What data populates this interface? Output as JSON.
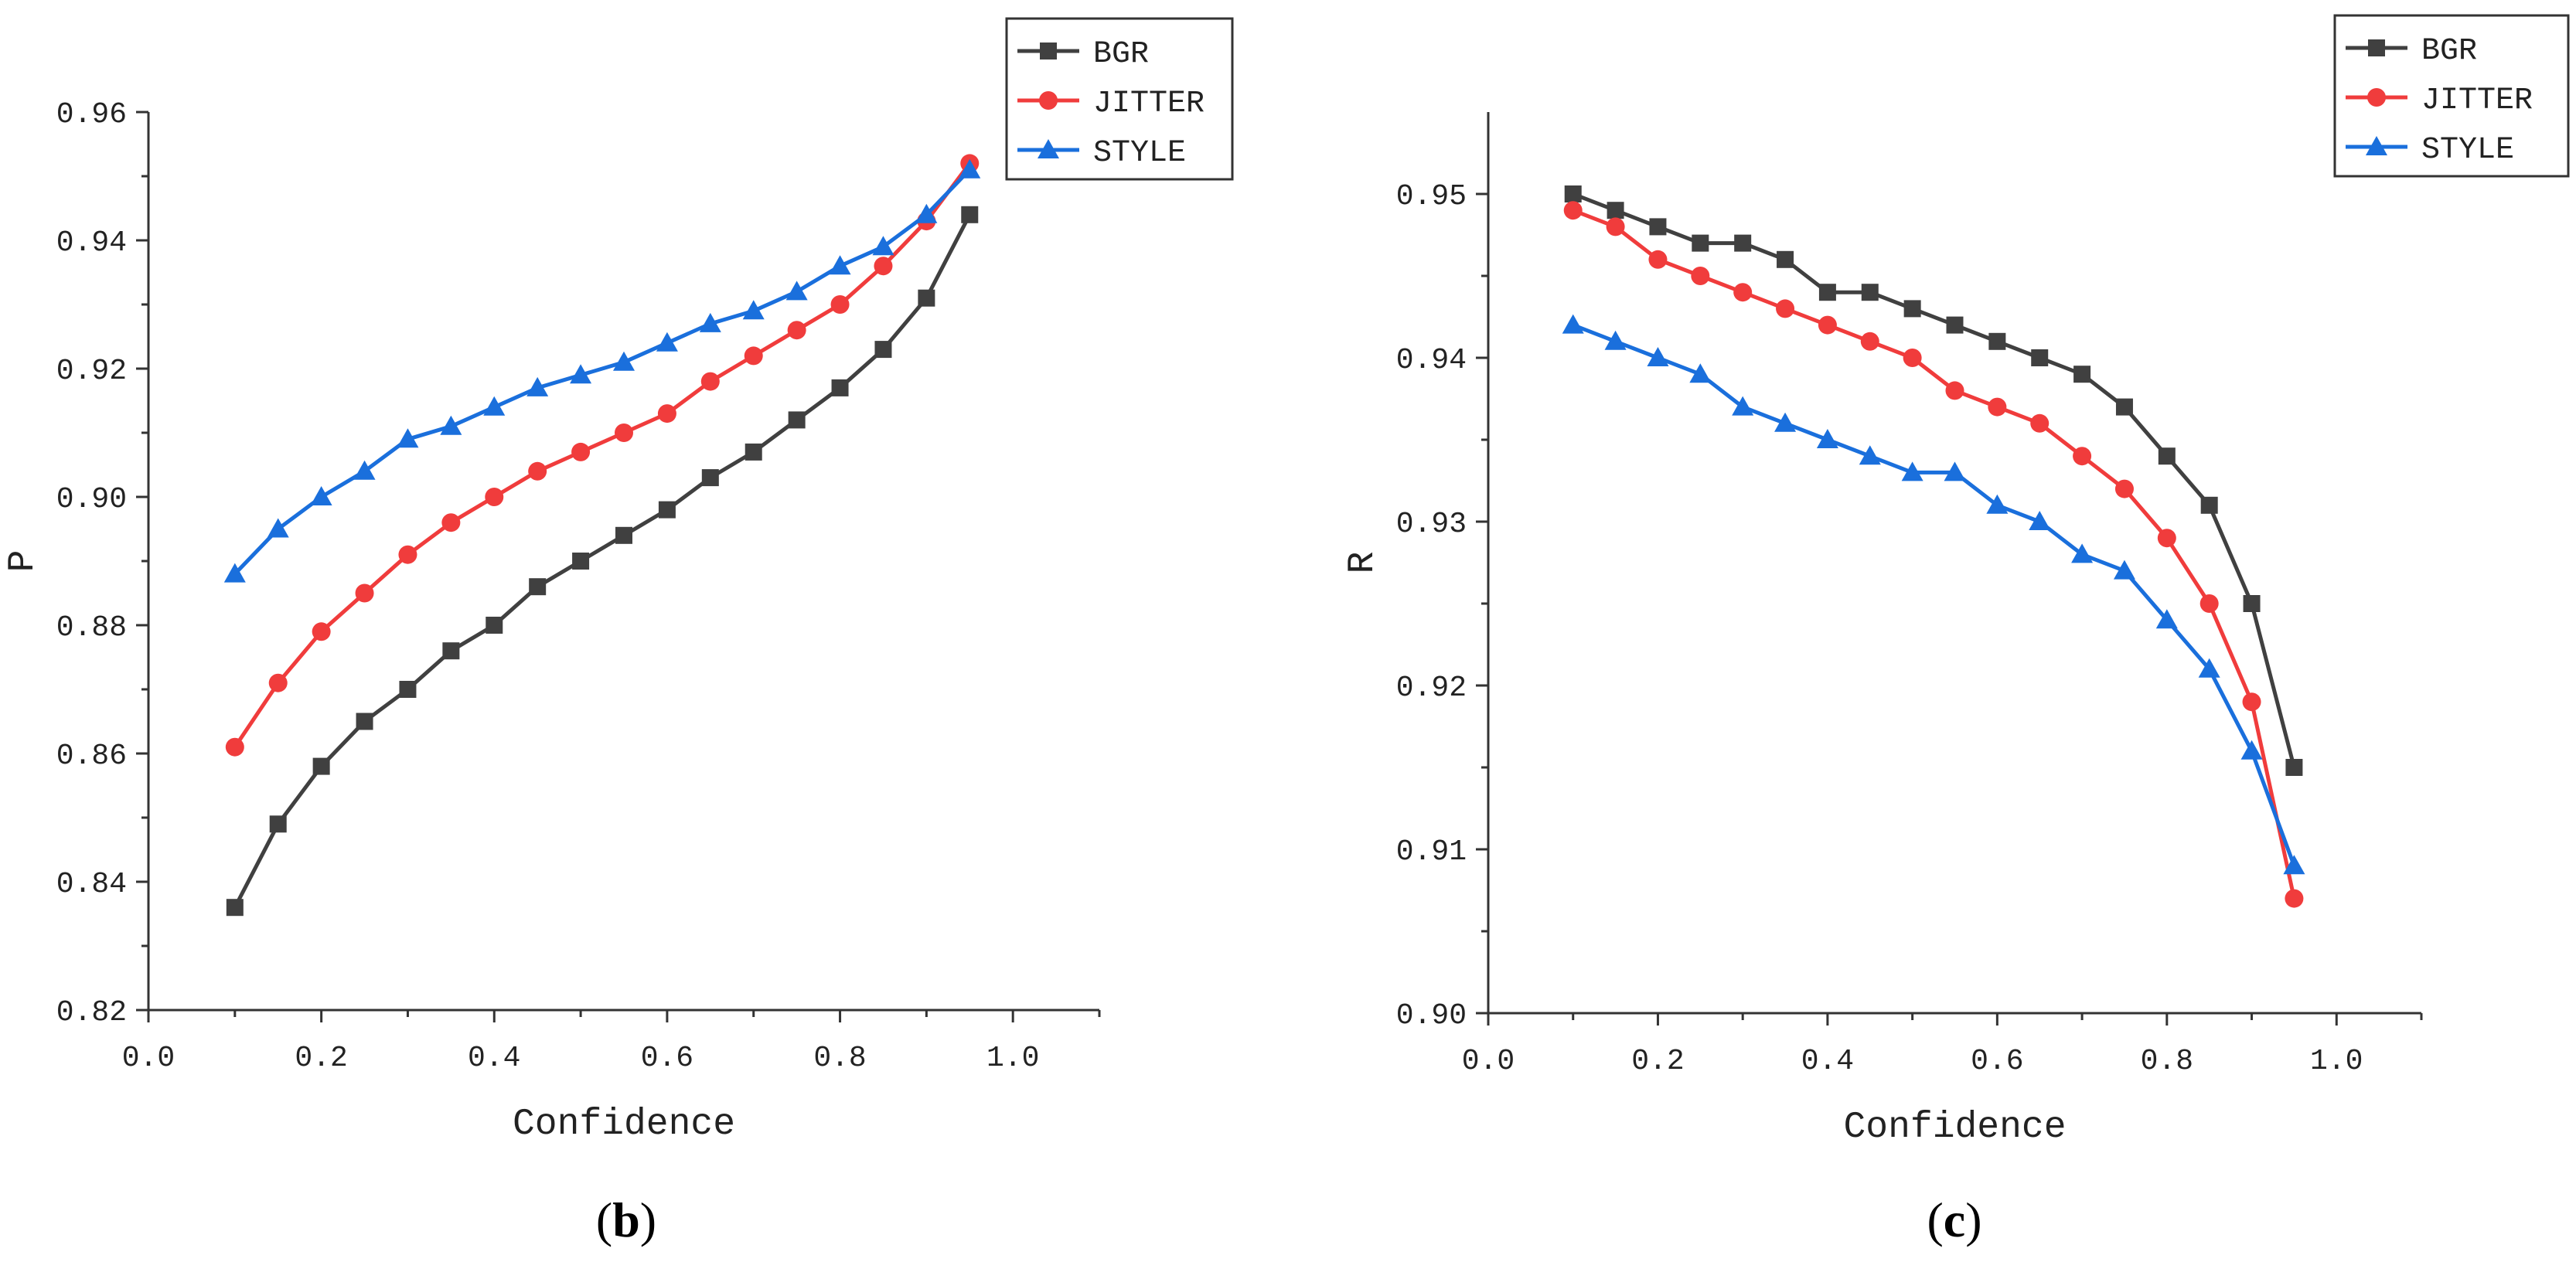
{
  "figure": {
    "panels": [
      "b",
      "c"
    ]
  },
  "chart_data": [
    {
      "id": "b",
      "type": "line",
      "caption_letter": "b",
      "title": "",
      "xlabel": "Confidence",
      "ylabel": "P",
      "xlim": [
        0.0,
        1.1
      ],
      "ylim": [
        0.82,
        0.96
      ],
      "xticks": [
        0.0,
        0.2,
        0.4,
        0.6,
        0.8,
        1.0
      ],
      "xtick_labels": [
        "0.0",
        "0.2",
        "0.4",
        "0.6",
        "0.8",
        "1.0"
      ],
      "yticks": [
        0.82,
        0.84,
        0.86,
        0.88,
        0.9,
        0.92,
        0.94,
        0.96
      ],
      "ytick_labels": [
        "0.82",
        "0.84",
        "0.86",
        "0.88",
        "0.90",
        "0.92",
        "0.94",
        "0.96"
      ],
      "grid": false,
      "legend_position": "top-right",
      "x": [
        0.1,
        0.15,
        0.2,
        0.25,
        0.3,
        0.35,
        0.4,
        0.45,
        0.5,
        0.55,
        0.6,
        0.65,
        0.7,
        0.75,
        0.8,
        0.85,
        0.9,
        0.95
      ],
      "series": [
        {
          "name": "BGR",
          "color": "#404040",
          "marker": "square",
          "values": [
            0.836,
            0.849,
            0.858,
            0.865,
            0.87,
            0.876,
            0.88,
            0.886,
            0.89,
            0.894,
            0.898,
            0.903,
            0.907,
            0.912,
            0.917,
            0.923,
            0.931,
            0.944
          ]
        },
        {
          "name": "JITTER",
          "color": "#f03c3c",
          "marker": "circle",
          "values": [
            0.861,
            0.871,
            0.879,
            0.885,
            0.891,
            0.896,
            0.9,
            0.904,
            0.907,
            0.91,
            0.913,
            0.918,
            0.922,
            0.926,
            0.93,
            0.936,
            0.943,
            0.952
          ]
        },
        {
          "name": "STYLE",
          "color": "#1a6fdc",
          "marker": "triangle",
          "values": [
            0.888,
            0.895,
            0.9,
            0.904,
            0.909,
            0.911,
            0.914,
            0.917,
            0.919,
            0.921,
            0.924,
            0.927,
            0.929,
            0.932,
            0.936,
            0.939,
            0.944,
            0.951
          ]
        }
      ]
    },
    {
      "id": "c",
      "type": "line",
      "caption_letter": "c",
      "title": "",
      "xlabel": "Confidence",
      "ylabel": "R",
      "xlim": [
        0.0,
        1.1
      ],
      "ylim": [
        0.9,
        0.955
      ],
      "xticks": [
        0.0,
        0.2,
        0.4,
        0.6,
        0.8,
        1.0
      ],
      "xtick_labels": [
        "0.0",
        "0.2",
        "0.4",
        "0.6",
        "0.8",
        "1.0"
      ],
      "yticks": [
        0.9,
        0.91,
        0.92,
        0.93,
        0.94,
        0.95
      ],
      "ytick_labels": [
        "0.90",
        "0.91",
        "0.92",
        "0.93",
        "0.94",
        "0.95"
      ],
      "grid": false,
      "legend_position": "top-right",
      "x": [
        0.1,
        0.15,
        0.2,
        0.25,
        0.3,
        0.35,
        0.4,
        0.45,
        0.5,
        0.55,
        0.6,
        0.65,
        0.7,
        0.75,
        0.8,
        0.85,
        0.9,
        0.95
      ],
      "series": [
        {
          "name": "BGR",
          "color": "#404040",
          "marker": "square",
          "values": [
            0.95,
            0.949,
            0.948,
            0.947,
            0.947,
            0.946,
            0.944,
            0.944,
            0.943,
            0.942,
            0.941,
            0.94,
            0.939,
            0.937,
            0.934,
            0.931,
            0.925,
            0.915
          ]
        },
        {
          "name": "JITTER",
          "color": "#f03c3c",
          "marker": "circle",
          "values": [
            0.949,
            0.948,
            0.946,
            0.945,
            0.944,
            0.943,
            0.942,
            0.941,
            0.94,
            0.938,
            0.937,
            0.936,
            0.934,
            0.932,
            0.929,
            0.925,
            0.919,
            0.907
          ]
        },
        {
          "name": "STYLE",
          "color": "#1a6fdc",
          "marker": "triangle",
          "values": [
            0.942,
            0.941,
            0.94,
            0.939,
            0.937,
            0.936,
            0.935,
            0.934,
            0.933,
            0.933,
            0.931,
            0.93,
            0.928,
            0.927,
            0.924,
            0.921,
            0.916,
            0.909
          ]
        }
      ]
    }
  ]
}
